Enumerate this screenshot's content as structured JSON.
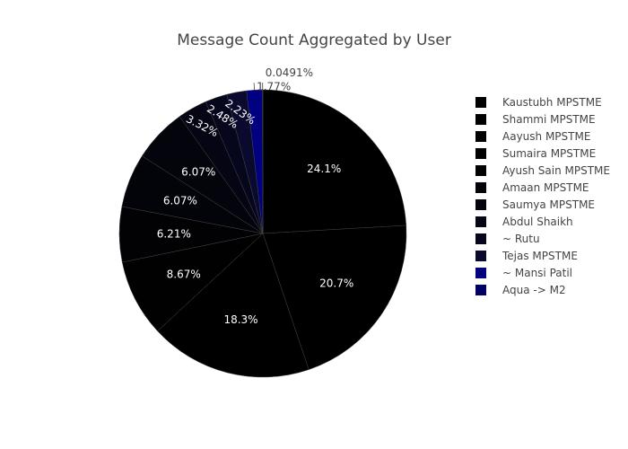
{
  "chart_data": {
    "type": "pie",
    "title": "Message Count Aggregated by User",
    "legend_position": "right",
    "slices": [
      {
        "label": "Kaustubh MPSTME",
        "percent": 24.1,
        "percent_label": "24.1%",
        "color": "#000000"
      },
      {
        "label": "Shammi MPSTME",
        "percent": 20.7,
        "percent_label": "20.7%",
        "color": "#000000"
      },
      {
        "label": "Aayush MPSTME",
        "percent": 18.3,
        "percent_label": "18.3%",
        "color": "#000000"
      },
      {
        "label": "Sumaira MPSTME",
        "percent": 8.67,
        "percent_label": "8.67%",
        "color": "#010102"
      },
      {
        "label": "Ayush Sain MPSTME",
        "percent": 6.21,
        "percent_label": "6.21%",
        "color": "#020205"
      },
      {
        "label": "Amaan MPSTME",
        "percent": 6.07,
        "percent_label": "6.07%",
        "color": "#03030a"
      },
      {
        "label": "Saumya MPSTME",
        "percent": 6.07,
        "percent_label": "6.07%",
        "color": "#04040c"
      },
      {
        "label": "Abdul Shaikh",
        "percent": 3.32,
        "percent_label": "3.32%",
        "color": "#050514"
      },
      {
        "label": "~ Rutu",
        "percent": 2.48,
        "percent_label": "2.48%",
        "color": "#06061c"
      },
      {
        "label": "Tejas MPSTME",
        "percent": 2.23,
        "percent_label": "2.23%",
        "color": "#0a0a2e"
      },
      {
        "label": "~ Mansi Patil",
        "percent": 1.77,
        "percent_label": "1.77%",
        "color": "#000080"
      },
      {
        "label": "Aqua -> M2",
        "percent": 0.0491,
        "percent_label": "0.0491%",
        "color": "#000066"
      }
    ]
  }
}
